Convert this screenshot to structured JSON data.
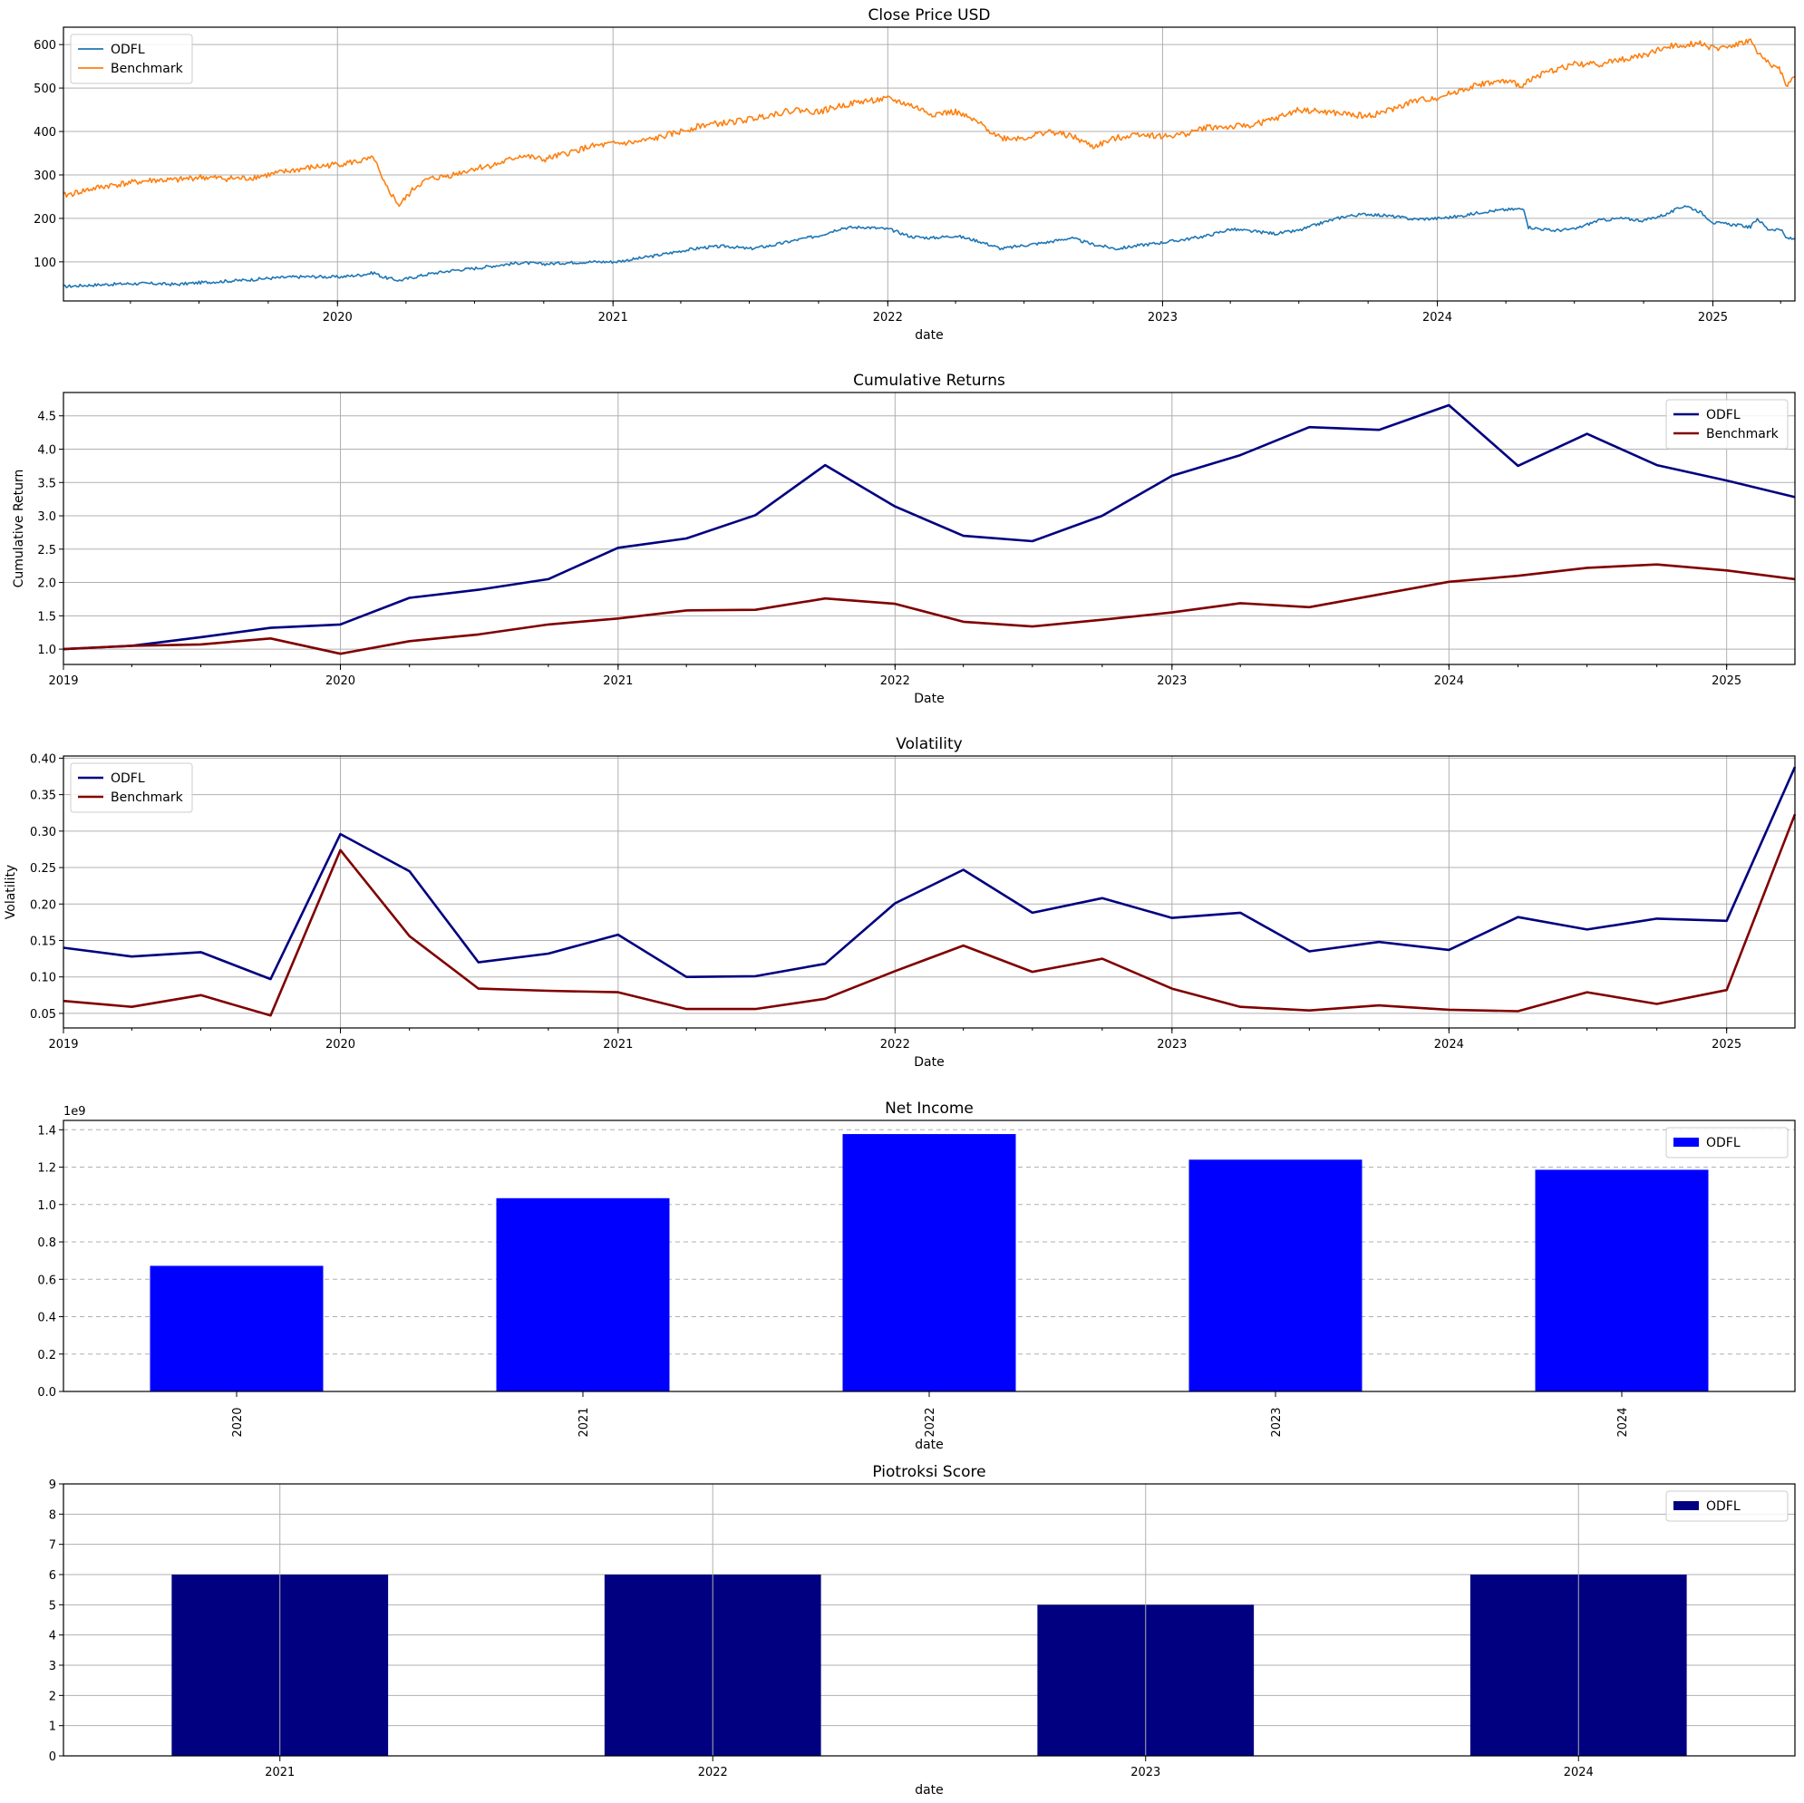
{
  "chart_data": [
    {
      "type": "line",
      "title": "Close Price USD",
      "xlabel": "date",
      "ylabel": "",
      "xlim": [
        "2019-01-02",
        "2025-04-20"
      ],
      "ylim": [
        10,
        640
      ],
      "x_ticks": [
        "2020",
        "2021",
        "2022",
        "2023",
        "2024",
        "2025"
      ],
      "y_ticks": [
        100,
        200,
        300,
        400,
        500,
        600
      ],
      "grid": true,
      "legend": "top-left",
      "x": [
        "2019-01-02",
        "2019-02-01",
        "2019-03-01",
        "2019-04-01",
        "2019-05-01",
        "2019-06-01",
        "2019-07-01",
        "2019-08-01",
        "2019-09-01",
        "2019-10-01",
        "2019-11-01",
        "2019-12-01",
        "2020-01-02",
        "2020-02-01",
        "2020-02-19",
        "2020-03-01",
        "2020-03-23",
        "2020-04-15",
        "2020-05-01",
        "2020-06-01",
        "2020-07-01",
        "2020-08-01",
        "2020-09-01",
        "2020-10-01",
        "2020-11-01",
        "2020-12-01",
        "2021-01-04",
        "2021-02-01",
        "2021-03-01",
        "2021-04-01",
        "2021-05-01",
        "2021-06-01",
        "2021-07-01",
        "2021-08-01",
        "2021-09-01",
        "2021-10-01",
        "2021-11-01",
        "2021-12-01",
        "2022-01-03",
        "2022-02-01",
        "2022-03-01",
        "2022-04-01",
        "2022-05-01",
        "2022-06-01",
        "2022-07-01",
        "2022-08-01",
        "2022-09-01",
        "2022-10-01",
        "2022-11-01",
        "2022-12-01",
        "2023-01-03",
        "2023-02-01",
        "2023-03-01",
        "2023-04-01",
        "2023-05-01",
        "2023-06-01",
        "2023-07-01",
        "2023-08-01",
        "2023-09-01",
        "2023-10-01",
        "2023-11-01",
        "2023-12-01",
        "2024-01-02",
        "2024-02-01",
        "2024-03-01",
        "2024-04-01",
        "2024-04-25",
        "2024-05-01",
        "2024-06-01",
        "2024-07-01",
        "2024-08-01",
        "2024-09-01",
        "2024-10-01",
        "2024-11-01",
        "2024-11-25",
        "2024-12-15",
        "2025-01-02",
        "2025-02-01",
        "2025-02-20",
        "2025-03-01",
        "2025-03-15",
        "2025-04-01",
        "2025-04-08",
        "2025-04-20"
      ],
      "series": [
        {
          "name": "ODFL",
          "color": "#1f77b4",
          "values": [
            43,
            46,
            48,
            50,
            50,
            48,
            52,
            55,
            58,
            62,
            65,
            66,
            65,
            70,
            75,
            65,
            57,
            66,
            72,
            80,
            85,
            92,
            98,
            95,
            98,
            100,
            100,
            107,
            115,
            125,
            133,
            136,
            130,
            138,
            150,
            160,
            178,
            180,
            175,
            158,
            155,
            160,
            148,
            130,
            138,
            145,
            155,
            140,
            130,
            138,
            145,
            152,
            160,
            175,
            170,
            165,
            172,
            190,
            205,
            210,
            205,
            198,
            200,
            205,
            215,
            220,
            222,
            180,
            172,
            175,
            195,
            200,
            195,
            210,
            230,
            215,
            190,
            185,
            180,
            200,
            175,
            175,
            155,
            152
          ]
        },
        {
          "name": "Benchmark",
          "color": "#ff7f0e",
          "values": [
            252,
            265,
            275,
            282,
            288,
            288,
            295,
            292,
            292,
            300,
            310,
            318,
            325,
            332,
            338,
            285,
            230,
            275,
            290,
            300,
            315,
            325,
            345,
            335,
            350,
            365,
            372,
            375,
            385,
            400,
            415,
            420,
            428,
            440,
            450,
            445,
            460,
            470,
            475,
            460,
            440,
            445,
            420,
            385,
            385,
            400,
            390,
            365,
            385,
            395,
            388,
            395,
            410,
            410,
            415,
            430,
            450,
            445,
            440,
            435,
            450,
            470,
            478,
            495,
            510,
            515,
            505,
            520,
            540,
            555,
            555,
            565,
            575,
            595,
            600,
            605,
            590,
            600,
            610,
            580,
            560,
            540,
            505,
            525
          ]
        }
      ]
    },
    {
      "type": "line",
      "title": "Cumulative Returns",
      "xlabel": "Date",
      "ylabel": "Cumulative Return",
      "xlim": [
        "2019-01-01",
        "2025-04-01"
      ],
      "ylim": [
        0.77,
        4.85
      ],
      "x_ticks": [
        "2019",
        "2020",
        "2021",
        "2022",
        "2023",
        "2024",
        "2025"
      ],
      "y_ticks": [
        1.0,
        1.5,
        2.0,
        2.5,
        3.0,
        3.5,
        4.0,
        4.5
      ],
      "grid": true,
      "legend": "top-right",
      "x": [
        "2019-01-01",
        "2019-04-01",
        "2019-07-01",
        "2019-10-01",
        "2020-01-01",
        "2020-04-01",
        "2020-07-01",
        "2020-10-01",
        "2021-01-01",
        "2021-04-01",
        "2021-07-01",
        "2021-10-01",
        "2022-01-01",
        "2022-04-01",
        "2022-07-01",
        "2022-10-01",
        "2023-01-01",
        "2023-04-01",
        "2023-07-01",
        "2023-10-01",
        "2024-01-01",
        "2024-04-01",
        "2024-07-01",
        "2024-10-01",
        "2025-01-01",
        "2025-04-01"
      ],
      "series": [
        {
          "name": "ODFL",
          "color": "#000080",
          "values": [
            1.0,
            1.05,
            1.18,
            1.32,
            1.37,
            1.77,
            1.89,
            2.05,
            2.52,
            2.66,
            3.01,
            3.76,
            3.14,
            2.7,
            2.62,
            3.0,
            3.6,
            3.91,
            4.33,
            4.29,
            4.66,
            3.75,
            4.23,
            3.76,
            3.53,
            3.28
          ]
        },
        {
          "name": "Benchmark",
          "color": "#800000",
          "values": [
            1.0,
            1.05,
            1.07,
            1.16,
            0.93,
            1.12,
            1.22,
            1.37,
            1.46,
            1.58,
            1.59,
            1.76,
            1.68,
            1.41,
            1.34,
            1.44,
            1.55,
            1.69,
            1.63,
            1.82,
            2.01,
            2.1,
            2.22,
            2.27,
            2.18,
            2.05
          ]
        }
      ]
    },
    {
      "type": "line",
      "title": "Volatility",
      "xlabel": "Date",
      "ylabel": "Volatility",
      "xlim": [
        "2019-01-01",
        "2025-04-01"
      ],
      "ylim": [
        0.03,
        0.403
      ],
      "x_ticks": [
        "2019",
        "2020",
        "2021",
        "2022",
        "2023",
        "2024",
        "2025"
      ],
      "y_ticks": [
        0.05,
        0.1,
        0.15,
        0.2,
        0.25,
        0.3,
        0.35,
        0.4
      ],
      "grid": true,
      "legend": "top-left",
      "x": [
        "2019-01-01",
        "2019-04-01",
        "2019-07-01",
        "2019-10-01",
        "2020-01-01",
        "2020-04-01",
        "2020-07-01",
        "2020-10-01",
        "2021-01-01",
        "2021-04-01",
        "2021-07-01",
        "2021-10-01",
        "2022-01-01",
        "2022-04-01",
        "2022-07-01",
        "2022-10-01",
        "2023-01-01",
        "2023-04-01",
        "2023-07-01",
        "2023-10-01",
        "2024-01-01",
        "2024-04-01",
        "2024-07-01",
        "2024-10-01",
        "2025-01-01",
        "2025-04-01"
      ],
      "series": [
        {
          "name": "ODFL",
          "color": "#000080",
          "values": [
            0.14,
            0.128,
            0.134,
            0.097,
            0.296,
            0.245,
            0.12,
            0.132,
            0.158,
            0.1,
            0.101,
            0.118,
            0.201,
            0.247,
            0.188,
            0.208,
            0.181,
            0.188,
            0.135,
            0.148,
            0.137,
            0.182,
            0.165,
            0.18,
            0.177,
            0.388
          ]
        },
        {
          "name": "Benchmark",
          "color": "#800000",
          "values": [
            0.067,
            0.059,
            0.075,
            0.047,
            0.274,
            0.156,
            0.084,
            0.081,
            0.079,
            0.056,
            0.056,
            0.07,
            0.108,
            0.143,
            0.107,
            0.125,
            0.084,
            0.059,
            0.054,
            0.061,
            0.055,
            0.053,
            0.079,
            0.063,
            0.082,
            0.323
          ]
        }
      ]
    },
    {
      "type": "bar",
      "title": "Net Income",
      "xlabel": "date",
      "ylabel": "",
      "y_scale_label": "1e9",
      "ylim": [
        0,
        1.45
      ],
      "y_ticks": [
        "0.0",
        "0.2",
        "0.4",
        "0.6",
        "0.8",
        "1.0",
        "1.2",
        "1.4"
      ],
      "categories": [
        "2020",
        "2021",
        "2022",
        "2023",
        "2024"
      ],
      "grid": "y-dashed",
      "legend": "top-right",
      "series": [
        {
          "name": "ODFL",
          "color": "#0000ff",
          "values": [
            0.672,
            1.034,
            1.377,
            1.24,
            1.186
          ]
        }
      ]
    },
    {
      "type": "bar",
      "title": "Piotroksi Score",
      "xlabel": "date",
      "ylabel": "",
      "ylim": [
        0,
        9
      ],
      "y_ticks": [
        0,
        1,
        2,
        3,
        4,
        5,
        6,
        7,
        8,
        9
      ],
      "categories": [
        "2021",
        "2022",
        "2023",
        "2024"
      ],
      "grid": true,
      "legend": "top-right",
      "series": [
        {
          "name": "ODFL",
          "color": "#000080",
          "values": [
            6,
            6,
            5,
            6
          ]
        }
      ]
    }
  ]
}
